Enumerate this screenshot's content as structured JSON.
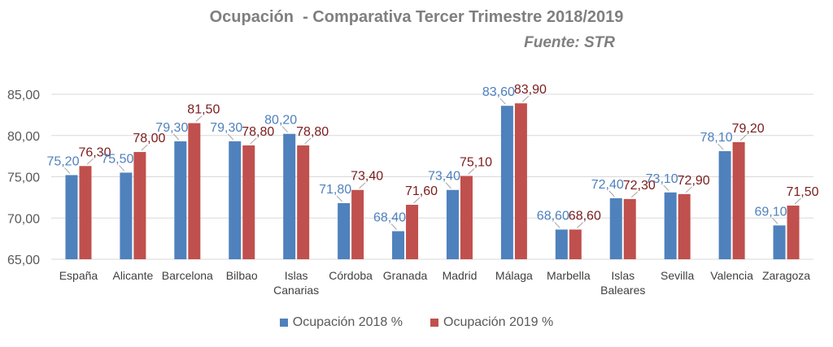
{
  "chart_data": {
    "type": "bar",
    "title": "Ocupación  - Comparativa Tercer Trimestre 2018/2019",
    "subtitle": "Fuente: STR",
    "categories": [
      "España",
      "Alicante",
      "Barcelona",
      "Bilbao",
      "Islas Canarias",
      "Córdoba",
      "Granada",
      "Madrid",
      "Málaga",
      "Marbella",
      "Islas Baleares",
      "Sevilla",
      "Valencia",
      "Zaragoza"
    ],
    "series": [
      {
        "name": "Ocupación 2018 %",
        "color": "#4f81bd",
        "label_color": "#4f81bd",
        "values": [
          75.2,
          75.5,
          79.3,
          79.3,
          80.2,
          71.8,
          68.4,
          73.4,
          83.6,
          68.6,
          72.4,
          73.1,
          78.1,
          69.1
        ],
        "labels": [
          "75,20",
          "75,50",
          "79,30",
          "79,30",
          "80,20",
          "71,80",
          "68,40",
          "73,40",
          "83,60",
          "68,60",
          "72,40",
          "73,10",
          "78,10",
          "69,10"
        ]
      },
      {
        "name": "Ocupación 2019 %",
        "color": "#c0504d",
        "label_color": "#7b1c1c",
        "values": [
          76.3,
          78.0,
          81.5,
          78.8,
          78.8,
          73.4,
          71.6,
          75.1,
          83.9,
          68.6,
          72.3,
          72.9,
          79.2,
          71.5
        ],
        "labels": [
          "76,30",
          "78,00",
          "81,50",
          "78,80",
          "78,80",
          "73,40",
          "71,60",
          "75,10",
          "83,90",
          "68,60",
          "72,30",
          "72,90",
          "79,20",
          "71,50"
        ]
      }
    ],
    "ylim": [
      65,
      85
    ],
    "yticks": [
      65,
      70,
      75,
      80,
      85
    ],
    "ytick_labels": [
      "65,00",
      "70,00",
      "75,00",
      "80,00",
      "85,00"
    ],
    "grid": true,
    "legend_position": "bottom"
  }
}
